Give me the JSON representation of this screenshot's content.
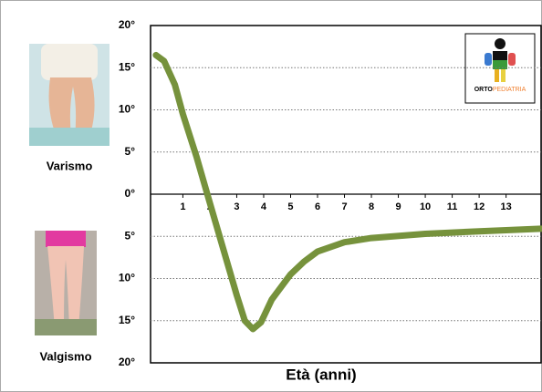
{
  "chart_data": {
    "type": "line",
    "x_label": "Età (anni)",
    "x": [
      0,
      0.3,
      0.7,
      1,
      1.5,
      2,
      2.5,
      3,
      3.3,
      3.6,
      3.9,
      4.3,
      5,
      5.5,
      6,
      7,
      8,
      10,
      12,
      14.3
    ],
    "series": [
      {
        "color": "#76923c",
        "values": [
          16.5,
          15.8,
          13,
          9.5,
          4.5,
          -1,
          -6.5,
          -12,
          -15,
          -16,
          -15.2,
          -12.5,
          -9.5,
          -8,
          -6.8,
          -5.7,
          -5.2,
          -4.7,
          -4.4,
          -4.1
        ]
      }
    ],
    "xlim": [
      -0.2,
      14.3
    ],
    "ylim": [
      -20,
      20
    ],
    "xticks": [
      1,
      2,
      3,
      4,
      5,
      6,
      7,
      8,
      9,
      10,
      11,
      12,
      13
    ],
    "yticks": [
      {
        "value": -20,
        "label": "20°"
      },
      {
        "value": -15,
        "label": "15°"
      },
      {
        "value": -10,
        "label": "10°"
      },
      {
        "value": -5,
        "label": "5°"
      },
      {
        "value": 0,
        "label": "0°"
      },
      {
        "value": 5,
        "label": "5°"
      },
      {
        "value": 10,
        "label": "10°"
      },
      {
        "value": 15,
        "label": "15°"
      },
      {
        "value": 20,
        "label": "20°"
      }
    ],
    "grid": true
  },
  "images": {
    "top_caption": "Varismo",
    "bottom_caption": "Valgismo"
  },
  "logo": {
    "bold": "ORTO",
    "light": "PEDIATRIA"
  }
}
